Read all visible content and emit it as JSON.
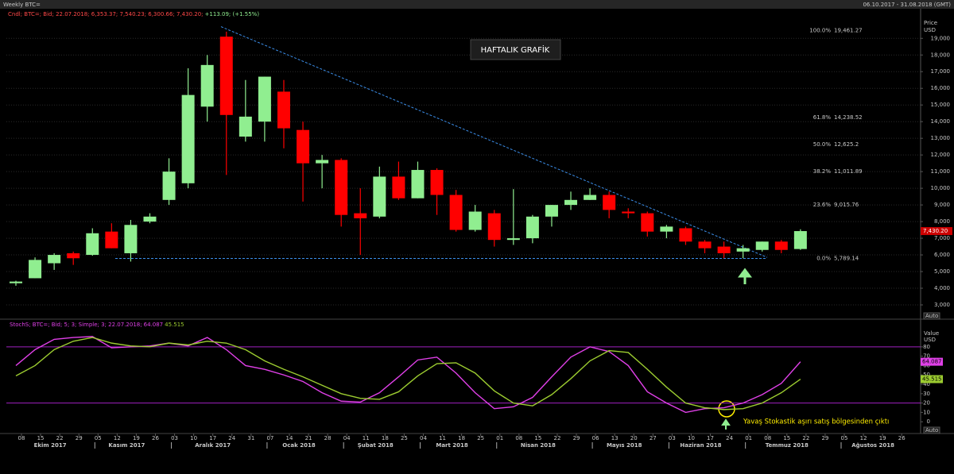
{
  "header": {
    "title": "Weekly BTC=",
    "date_range": "06.10.2017 - 31.08.2018 (GMT)"
  },
  "chart_data": [
    {
      "type": "candlestick",
      "legend": "Cndl; BTC=; Bid; 22.07.2018; 6,353.37; 7,540.23; 6,300.66; 7,430.20;",
      "legend_change": "+113.09; (+1.55%)",
      "title": "HAFTALIK GRAFİK",
      "y_label": "Price",
      "y_unit": "USD",
      "auto_label": "Auto",
      "categories": [
        "08",
        "15",
        "22",
        "29",
        "05",
        "12",
        "19",
        "26",
        "03",
        "10",
        "17",
        "24",
        "31",
        "07",
        "14",
        "21",
        "28",
        "04",
        "11",
        "18",
        "25",
        "04",
        "11",
        "18",
        "25",
        "01",
        "08",
        "15",
        "22",
        "29",
        "06",
        "13",
        "20",
        "27",
        "03",
        "10",
        "17",
        "24",
        "01",
        "08",
        "15",
        "22",
        "29",
        "05",
        "12",
        "19",
        "26"
      ],
      "months": [
        "Ekim 2017",
        "Kasım 2017",
        "Aralık 2017",
        "Ocak 2018",
        "Şubat 2018",
        "Mart 2018",
        "Nisan 2018",
        "Mayıs 2018",
        "Haziran 2018",
        "Temmuz 2018",
        "Ağustos 2018"
      ],
      "open": [
        4300,
        4600,
        5500,
        6100,
        6000,
        7400,
        6100,
        8000,
        9300,
        10300,
        14900,
        19100,
        13100,
        14000,
        15800,
        13500,
        11500,
        11700,
        8500,
        8300,
        10700,
        9400,
        11100,
        9600,
        7500,
        8500,
        6900,
        7000,
        8300,
        9000,
        9300,
        9600,
        8600,
        8500,
        7400,
        7600,
        6800,
        6500,
        6200,
        6300,
        6800,
        6353.37,
        null,
        null,
        null,
        null,
        null
      ],
      "high": [
        4450,
        5850,
        6100,
        6200,
        7600,
        7900,
        8100,
        8500,
        11800,
        17200,
        18000,
        19400,
        16500,
        16700,
        16500,
        14000,
        12000,
        11800,
        10000,
        11300,
        11600,
        11600,
        11200,
        9900,
        9000,
        8700,
        9950,
        8400,
        9000,
        9800,
        10000,
        9800,
        8800,
        8600,
        7800,
        7700,
        6900,
        6800,
        6600,
        6800,
        6900,
        7540.23,
        null,
        null,
        null,
        null,
        null
      ],
      "low": [
        4150,
        4600,
        5100,
        5400,
        5950,
        6400,
        5600,
        7900,
        9000,
        10000,
        14000,
        10800,
        12800,
        12800,
        12400,
        9200,
        10000,
        7700,
        6000,
        8200,
        9300,
        9400,
        8400,
        7400,
        7400,
        6500,
        6600,
        6700,
        7700,
        8700,
        9300,
        8200,
        8200,
        7100,
        7000,
        6600,
        6100,
        5800,
        5800,
        6200,
        6100,
        6300.66,
        null,
        null,
        null,
        null,
        null
      ],
      "close": [
        4400,
        5700,
        6000,
        5800,
        7300,
        6400,
        7800,
        8300,
        11000,
        15600,
        17400,
        14400,
        14300,
        16700,
        13600,
        11500,
        11700,
        8400,
        8200,
        10700,
        9400,
        11100,
        9600,
        7500,
        8600,
        6900,
        7000,
        8300,
        9000,
        9300,
        9600,
        8700,
        8500,
        7400,
        7700,
        6800,
        6400,
        6100,
        6400,
        6800,
        6300,
        7430.2,
        null,
        null,
        null,
        null,
        null
      ],
      "last_close_label": "7,430.20",
      "up_color": "#90ee90",
      "down_color": "#ff0000",
      "ylim": [
        2500,
        20300
      ],
      "yticks": [
        {
          "value": 3000,
          "label": "3,000"
        },
        {
          "value": 4000,
          "label": "4,000"
        },
        {
          "value": 5000,
          "label": "5,000"
        },
        {
          "value": 6000,
          "label": "6,000"
        },
        {
          "value": 7000,
          "label": "7,000"
        },
        {
          "value": 8000,
          "label": "8,000"
        },
        {
          "value": 9000,
          "label": "9,000"
        },
        {
          "value": 10000,
          "label": "10,000"
        },
        {
          "value": 11000,
          "label": "11,000"
        },
        {
          "value": 12000,
          "label": "12,000"
        },
        {
          "value": 13000,
          "label": "13,000"
        },
        {
          "value": 14000,
          "label": "14,000"
        },
        {
          "value": 15000,
          "label": "15,000"
        },
        {
          "value": 16000,
          "label": "16,000"
        },
        {
          "value": 17000,
          "label": "17,000"
        },
        {
          "value": 18000,
          "label": "18,000"
        },
        {
          "value": 19000,
          "label": "19,000"
        }
      ],
      "grid": true,
      "fib": {
        "labels": [
          "100.0%",
          "61.8%",
          "50.0%",
          "38.2%",
          "23.6%",
          "0.0%"
        ],
        "values": [
          19461.27,
          14238.52,
          12625.2,
          11011.89,
          9015.76,
          5789.14
        ],
        "value_labels": [
          "19,461.27",
          "14,238.52",
          "12,625.2",
          "11,011.89",
          "9,015.76",
          "5,789.14"
        ]
      },
      "trendlines": [
        [
          19700,
          5850
        ],
        [
          5789.14,
          5789.14
        ]
      ],
      "trend_color": "#3b8eea"
    },
    {
      "type": "line",
      "legend": "StochS; BTC=; Bid;  5; 3; Simple; 3; 22.07.2018;",
      "y_label": "Value",
      "y_unit": "USD",
      "auto_label": "Auto",
      "annotation": "Yavaş Stokastik aşırı satış bölgesinden çıktı",
      "series": [
        {
          "color": "#e040e8",
          "last_label": "64.087",
          "values": [
            60,
            77,
            88,
            90,
            91,
            79,
            80,
            81,
            84,
            81,
            90,
            77,
            60,
            56,
            50,
            43,
            31,
            22,
            21,
            31,
            48,
            66,
            69,
            52,
            31,
            14,
            16,
            26,
            48,
            69,
            80,
            75,
            60,
            32,
            20,
            10,
            14,
            15,
            20,
            29,
            41,
            64.087,
            null,
            null,
            null,
            null,
            null
          ]
        },
        {
          "color": "#9ccc30",
          "last_label": "45.515",
          "values": [
            49,
            60,
            77,
            86,
            90,
            84,
            81,
            80,
            84,
            82,
            86,
            84,
            77,
            65,
            56,
            48,
            39,
            30,
            25,
            24,
            32,
            49,
            62,
            63,
            52,
            33,
            20,
            17,
            29,
            46,
            65,
            76,
            74,
            56,
            37,
            20,
            15,
            13,
            14,
            20,
            31,
            45.515,
            null,
            null,
            null,
            null,
            null
          ]
        }
      ],
      "levels": [
        80,
        20
      ],
      "level_color": "#a020c0",
      "ylim": [
        -10,
        107
      ],
      "yticks": [
        0,
        10,
        20,
        30,
        40,
        50,
        60,
        70,
        80
      ]
    }
  ]
}
